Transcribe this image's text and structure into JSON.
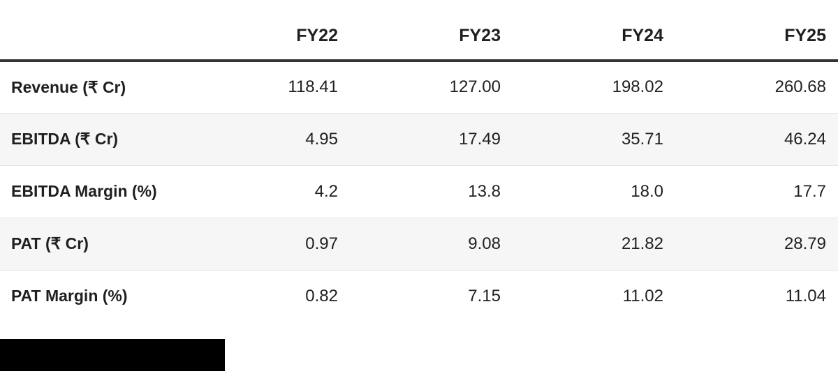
{
  "table": {
    "columns": [
      "",
      "FY22",
      "FY23",
      "FY24",
      "FY25"
    ],
    "rows": [
      {
        "label": "Revenue (₹ Cr)",
        "values": [
          "118.41",
          "127.00",
          "198.02",
          "260.68"
        ]
      },
      {
        "label": "EBITDA (₹ Cr)",
        "values": [
          "4.95",
          "17.49",
          "35.71",
          "46.24"
        ]
      },
      {
        "label": "EBITDA Margin (%)",
        "values": [
          "4.2",
          "13.8",
          "18.0",
          "17.7"
        ]
      },
      {
        "label": "PAT (₹ Cr)",
        "values": [
          "0.97",
          "9.08",
          "21.82",
          "28.79"
        ]
      },
      {
        "label": "PAT Margin (%)",
        "values": [
          "0.82",
          "7.15",
          "11.02",
          "11.04"
        ]
      }
    ]
  },
  "chart_data": {
    "type": "table",
    "columns": [
      "",
      "FY22",
      "FY23",
      "FY24",
      "FY25"
    ],
    "rows": [
      [
        "Revenue (₹ Cr)",
        118.41,
        127.0,
        198.02,
        260.68
      ],
      [
        "EBITDA (₹ Cr)",
        4.95,
        17.49,
        35.71,
        46.24
      ],
      [
        "EBITDA Margin (%)",
        4.2,
        13.8,
        18.0,
        17.7
      ],
      [
        "PAT (₹ Cr)",
        0.97,
        9.08,
        21.82,
        28.79
      ],
      [
        "PAT Margin (%)",
        0.82,
        7.15,
        11.02,
        11.04
      ]
    ],
    "title": "",
    "layout_hints": {
      "value_alignment": "right",
      "header_rule": "thick-bottom",
      "row_striping": "alternate"
    }
  },
  "colors": {
    "text": "#1f1f1f",
    "header_rule": "#333333",
    "alt_row_bg": "#f6f6f6",
    "row_divider": "#e4e4e4",
    "background": "#ffffff",
    "redaction": "#000000"
  },
  "redaction_block": {
    "present": true
  }
}
